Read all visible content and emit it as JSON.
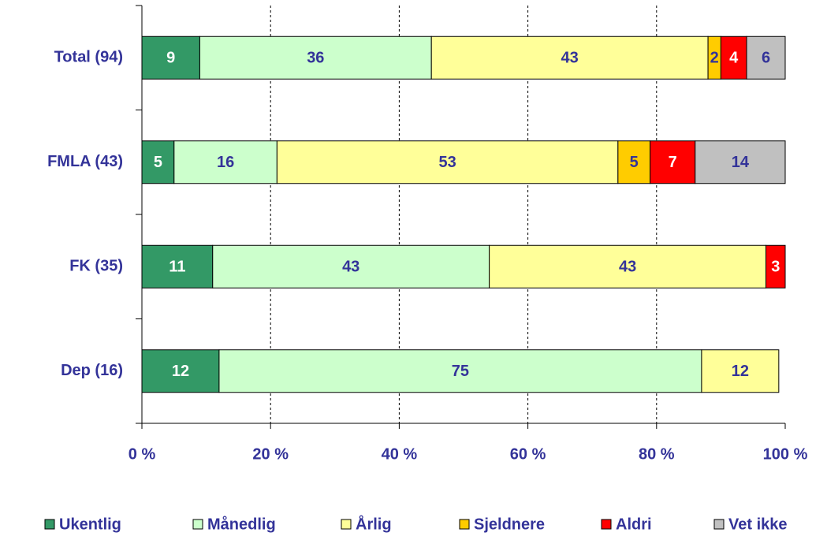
{
  "chart_data": {
    "type": "stacked-barh",
    "categories": [
      "Total (94)",
      "FMLA (43)",
      "FK (35)",
      "Dep (16)"
    ],
    "series": [
      {
        "name": "Ukentlig",
        "color": "#339966",
        "values": [
          9,
          5,
          11,
          12
        ]
      },
      {
        "name": "Månedlig",
        "color": "#ccffcc",
        "values": [
          36,
          16,
          43,
          75
        ]
      },
      {
        "name": "Årlig",
        "color": "#ffff99",
        "values": [
          43,
          53,
          43,
          12
        ]
      },
      {
        "name": "Sjeldnere",
        "color": "#ffcc00",
        "values": [
          2,
          5,
          null,
          null
        ]
      },
      {
        "name": "Aldri",
        "color": "#ff0000",
        "values": [
          4,
          7,
          3,
          null
        ]
      },
      {
        "name": "Vet ikke",
        "color": "#c0c0c0",
        "values": [
          6,
          14,
          null,
          null
        ]
      }
    ],
    "xlim": [
      0,
      100
    ],
    "xticks": [
      {
        "value": 0,
        "label": "0 %"
      },
      {
        "value": 20,
        "label": "20 %"
      },
      {
        "value": 40,
        "label": "40 %"
      },
      {
        "value": 60,
        "label": "60 %"
      },
      {
        "value": 80,
        "label": "80 %"
      },
      {
        "value": 100,
        "label": "100 %"
      }
    ],
    "grid": true,
    "legend": "bottom"
  }
}
